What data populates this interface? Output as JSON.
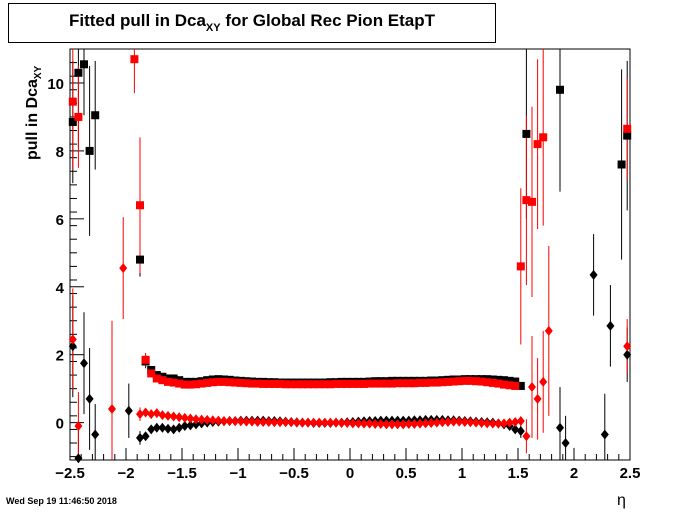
{
  "title": {
    "main": "Fitted pull in Dca",
    "sub": "XY",
    "rest": " for Global Rec Pion EtapT"
  },
  "ylabel": {
    "main": "pull in Dca",
    "sub": "XY"
  },
  "xlabel": "η",
  "timestamp": "Wed Sep 19 11:46:50 2018",
  "chart_data": {
    "type": "scatter",
    "xlim": [
      -2.5,
      2.5
    ],
    "ylim": [
      -1.1,
      11.0
    ],
    "xticks": [
      -2.5,
      -2,
      -1.5,
      -1,
      -0.5,
      0,
      0.5,
      1,
      1.5,
      2,
      2.5
    ],
    "xtick_labels": [
      "−2.5",
      "−2",
      "−1.5",
      "−1",
      "−0.5",
      "0",
      "0.5",
      "1",
      "1.5",
      "2",
      "2.5"
    ],
    "yticks": [
      0,
      2,
      4,
      6,
      8,
      10
    ],
    "ytick_labels": [
      "0",
      "2",
      "4",
      "6",
      "8",
      "10"
    ],
    "colors": {
      "black": "#000000",
      "red": "#ff0000"
    },
    "series": [
      {
        "marker": "square",
        "color": "#000000",
        "x": [
          -2.475,
          -2.425,
          -2.375,
          -2.325,
          -2.275,
          -1.875,
          -1.825,
          -1.775,
          -1.725,
          -1.675,
          -1.625,
          -1.575,
          -1.525,
          -1.475,
          -1.425,
          -1.375,
          -1.325,
          -1.275,
          -1.225,
          -1.175,
          -1.125,
          -1.075,
          -1.025,
          -0.975,
          -0.925,
          -0.875,
          -0.825,
          -0.775,
          -0.725,
          -0.675,
          -0.625,
          -0.575,
          -0.525,
          -0.475,
          -0.425,
          -0.375,
          -0.325,
          -0.275,
          -0.225,
          -0.175,
          -0.125,
          -0.075,
          -0.025,
          0.025,
          0.075,
          0.125,
          0.175,
          0.225,
          0.275,
          0.325,
          0.375,
          0.425,
          0.475,
          0.525,
          0.575,
          0.625,
          0.675,
          0.725,
          0.775,
          0.825,
          0.875,
          0.925,
          0.975,
          1.025,
          1.075,
          1.125,
          1.175,
          1.225,
          1.275,
          1.325,
          1.375,
          1.425,
          1.475,
          1.525,
          1.575,
          1.875,
          2.425,
          2.475
        ],
        "y": [
          8.85,
          10.3,
          10.55,
          8.0,
          9.05,
          4.8,
          1.8,
          1.55,
          1.4,
          1.35,
          1.3,
          1.3,
          1.25,
          1.2,
          1.2,
          1.2,
          1.22,
          1.25,
          1.27,
          1.28,
          1.27,
          1.26,
          1.24,
          1.23,
          1.22,
          1.21,
          1.2,
          1.2,
          1.19,
          1.19,
          1.18,
          1.18,
          1.18,
          1.18,
          1.18,
          1.18,
          1.18,
          1.18,
          1.18,
          1.19,
          1.19,
          1.2,
          1.2,
          1.2,
          1.2,
          1.2,
          1.21,
          1.22,
          1.22,
          1.22,
          1.23,
          1.23,
          1.23,
          1.23,
          1.23,
          1.23,
          1.23,
          1.24,
          1.24,
          1.25,
          1.26,
          1.27,
          1.27,
          1.28,
          1.28,
          1.28,
          1.28,
          1.28,
          1.27,
          1.26,
          1.25,
          1.23,
          1.21,
          1.08,
          8.5,
          9.8,
          7.6,
          8.45
        ],
        "err": [
          1.8,
          2.2,
          1.5,
          2.5,
          1.6,
          0.5,
          0.2,
          0.12,
          0.08,
          0.05,
          0.04,
          0.03,
          0.03,
          0.03,
          0.03,
          0.03,
          0.03,
          0.03,
          0.03,
          0.03,
          0.03,
          0.03,
          0.03,
          0.03,
          0.03,
          0.03,
          0.03,
          0.03,
          0.03,
          0.03,
          0.03,
          0.03,
          0.03,
          0.03,
          0.03,
          0.03,
          0.03,
          0.03,
          0.03,
          0.03,
          0.03,
          0.03,
          0.03,
          0.03,
          0.03,
          0.03,
          0.03,
          0.03,
          0.03,
          0.03,
          0.03,
          0.03,
          0.03,
          0.03,
          0.03,
          0.03,
          0.03,
          0.03,
          0.03,
          0.03,
          0.03,
          0.03,
          0.03,
          0.03,
          0.03,
          0.03,
          0.03,
          0.03,
          0.03,
          0.03,
          0.03,
          0.03,
          0.05,
          0.12,
          2.5,
          3.0,
          2.8,
          2.2
        ]
      },
      {
        "marker": "square",
        "color": "#ff0000",
        "x": [
          -2.475,
          -2.425,
          -1.925,
          -1.875,
          -1.825,
          -1.775,
          -1.725,
          -1.675,
          -1.625,
          -1.575,
          -1.525,
          -1.475,
          -1.425,
          -1.375,
          -1.325,
          -1.275,
          -1.225,
          -1.175,
          -1.125,
          -1.075,
          -1.025,
          -0.975,
          -0.925,
          -0.875,
          -0.825,
          -0.775,
          -0.725,
          -0.675,
          -0.625,
          -0.575,
          -0.525,
          -0.475,
          -0.425,
          -0.375,
          -0.325,
          -0.275,
          -0.225,
          -0.175,
          -0.125,
          -0.075,
          -0.025,
          0.025,
          0.075,
          0.125,
          0.175,
          0.225,
          0.275,
          0.325,
          0.375,
          0.425,
          0.475,
          0.525,
          0.575,
          0.625,
          0.675,
          0.725,
          0.775,
          0.825,
          0.875,
          0.925,
          0.975,
          1.025,
          1.075,
          1.125,
          1.175,
          1.225,
          1.275,
          1.325,
          1.375,
          1.425,
          1.475,
          1.525,
          1.575,
          1.625,
          1.675,
          1.725,
          2.475
        ],
        "y": [
          9.45,
          9.0,
          10.7,
          6.4,
          1.85,
          1.45,
          1.3,
          1.25,
          1.2,
          1.18,
          1.15,
          1.12,
          1.12,
          1.13,
          1.15,
          1.17,
          1.19,
          1.2,
          1.2,
          1.19,
          1.18,
          1.17,
          1.16,
          1.15,
          1.15,
          1.14,
          1.14,
          1.14,
          1.14,
          1.13,
          1.13,
          1.13,
          1.13,
          1.13,
          1.13,
          1.13,
          1.13,
          1.13,
          1.14,
          1.14,
          1.14,
          1.14,
          1.14,
          1.14,
          1.15,
          1.15,
          1.15,
          1.15,
          1.15,
          1.16,
          1.16,
          1.16,
          1.16,
          1.17,
          1.17,
          1.18,
          1.18,
          1.19,
          1.2,
          1.21,
          1.22,
          1.23,
          1.23,
          1.22,
          1.21,
          1.19,
          1.17,
          1.15,
          1.12,
          1.1,
          1.08,
          4.6,
          6.55,
          6.5,
          8.2,
          8.4,
          8.65
        ],
        "err": [
          2.0,
          1.5,
          1.0,
          2.0,
          0.2,
          0.12,
          0.08,
          0.05,
          0.04,
          0.03,
          0.03,
          0.03,
          0.03,
          0.03,
          0.03,
          0.03,
          0.03,
          0.03,
          0.03,
          0.03,
          0.03,
          0.03,
          0.03,
          0.03,
          0.03,
          0.03,
          0.03,
          0.03,
          0.03,
          0.03,
          0.03,
          0.03,
          0.03,
          0.03,
          0.03,
          0.03,
          0.03,
          0.03,
          0.03,
          0.03,
          0.03,
          0.03,
          0.03,
          0.03,
          0.03,
          0.03,
          0.03,
          0.03,
          0.03,
          0.03,
          0.03,
          0.03,
          0.03,
          0.03,
          0.03,
          0.03,
          0.03,
          0.03,
          0.03,
          0.03,
          0.03,
          0.03,
          0.03,
          0.03,
          0.03,
          0.03,
          0.03,
          0.03,
          0.03,
          0.03,
          0.05,
          2.3,
          2.5,
          2.8,
          2.5,
          2.6,
          1.5
        ]
      },
      {
        "marker": "diamond",
        "color": "#000000",
        "x": [
          -2.475,
          -2.425,
          -2.375,
          -2.325,
          -2.275,
          -1.975,
          -1.875,
          -1.825,
          -1.775,
          -1.725,
          -1.675,
          -1.625,
          -1.575,
          -1.525,
          -1.475,
          -1.425,
          -1.375,
          -1.325,
          -1.275,
          -1.225,
          -1.175,
          -1.125,
          -1.075,
          -1.025,
          -0.975,
          -0.925,
          -0.875,
          -0.825,
          -0.775,
          -0.725,
          -0.675,
          -0.625,
          -0.575,
          -0.525,
          -0.475,
          -0.425,
          -0.375,
          -0.325,
          -0.275,
          -0.225,
          -0.175,
          -0.125,
          -0.075,
          -0.025,
          0.025,
          0.075,
          0.125,
          0.175,
          0.225,
          0.275,
          0.325,
          0.375,
          0.425,
          0.475,
          0.525,
          0.575,
          0.625,
          0.675,
          0.725,
          0.775,
          0.825,
          0.875,
          0.925,
          0.975,
          1.025,
          1.075,
          1.125,
          1.175,
          1.225,
          1.275,
          1.325,
          1.375,
          1.425,
          1.475,
          1.525,
          1.875,
          1.925,
          2.175,
          2.275,
          2.325,
          2.475
        ],
        "y": [
          2.25,
          -1.05,
          1.75,
          0.7,
          -0.35,
          0.35,
          -0.45,
          -0.4,
          -0.2,
          -0.15,
          -0.15,
          -0.18,
          -0.2,
          -0.15,
          -0.1,
          -0.08,
          -0.05,
          -0.02,
          0.0,
          0.02,
          0.03,
          0.04,
          0.05,
          0.05,
          0.06,
          0.06,
          0.06,
          0.06,
          0.06,
          0.05,
          0.05,
          0.04,
          0.03,
          0.02,
          0.01,
          0.0,
          0.0,
          -0.01,
          -0.01,
          -0.01,
          -0.01,
          0.0,
          0.0,
          0.01,
          0.02,
          0.03,
          0.04,
          0.05,
          0.05,
          0.06,
          0.06,
          0.06,
          0.06,
          0.06,
          0.06,
          0.07,
          0.07,
          0.08,
          0.08,
          0.08,
          0.08,
          0.07,
          0.07,
          0.06,
          0.05,
          0.04,
          0.03,
          0.02,
          0.01,
          0.0,
          -0.02,
          -0.05,
          -0.1,
          -0.2,
          -0.25,
          -0.15,
          -0.6,
          4.35,
          -0.35,
          2.85,
          2.0
        ],
        "err": [
          1.5,
          1.0,
          1.5,
          1.5,
          0.9,
          0.8,
          0.2,
          0.1,
          0.06,
          0.05,
          0.04,
          0.03,
          0.03,
          0.03,
          0.03,
          0.03,
          0.03,
          0.03,
          0.03,
          0.03,
          0.03,
          0.03,
          0.03,
          0.03,
          0.03,
          0.03,
          0.03,
          0.03,
          0.03,
          0.03,
          0.03,
          0.03,
          0.03,
          0.03,
          0.03,
          0.03,
          0.03,
          0.03,
          0.03,
          0.03,
          0.03,
          0.03,
          0.03,
          0.03,
          0.03,
          0.03,
          0.03,
          0.03,
          0.03,
          0.03,
          0.03,
          0.03,
          0.03,
          0.03,
          0.03,
          0.03,
          0.03,
          0.03,
          0.03,
          0.03,
          0.03,
          0.03,
          0.03,
          0.03,
          0.03,
          0.03,
          0.03,
          0.03,
          0.03,
          0.03,
          0.03,
          0.03,
          0.05,
          0.1,
          0.2,
          1.2,
          0.8,
          1.2,
          1.2,
          1.2,
          0.8
        ]
      },
      {
        "marker": "diamond",
        "color": "#ff0000",
        "x": [
          -2.475,
          -2.425,
          -2.125,
          -2.025,
          -1.875,
          -1.825,
          -1.775,
          -1.725,
          -1.675,
          -1.625,
          -1.575,
          -1.525,
          -1.475,
          -1.425,
          -1.375,
          -1.325,
          -1.275,
          -1.225,
          -1.175,
          -1.125,
          -1.075,
          -1.025,
          -0.975,
          -0.925,
          -0.875,
          -0.825,
          -0.775,
          -0.725,
          -0.675,
          -0.625,
          -0.575,
          -0.525,
          -0.475,
          -0.425,
          -0.375,
          -0.325,
          -0.275,
          -0.225,
          -0.175,
          -0.125,
          -0.075,
          -0.025,
          0.025,
          0.075,
          0.125,
          0.175,
          0.225,
          0.275,
          0.325,
          0.375,
          0.425,
          0.475,
          0.525,
          0.575,
          0.625,
          0.675,
          0.725,
          0.775,
          0.825,
          0.875,
          0.925,
          0.975,
          1.025,
          1.075,
          1.125,
          1.175,
          1.225,
          1.275,
          1.325,
          1.375,
          1.425,
          1.475,
          1.525,
          1.575,
          1.625,
          1.675,
          1.725,
          1.775,
          2.475
        ],
        "y": [
          2.45,
          -0.1,
          0.4,
          4.55,
          0.25,
          0.3,
          0.25,
          0.28,
          0.22,
          0.2,
          0.18,
          0.16,
          0.14,
          0.12,
          0.1,
          0.09,
          0.08,
          0.07,
          0.06,
          0.05,
          0.05,
          0.04,
          0.04,
          0.03,
          0.03,
          0.02,
          0.02,
          0.02,
          0.01,
          0.01,
          0.01,
          0.01,
          0.0,
          0.0,
          0.0,
          0.0,
          0.0,
          0.0,
          0.0,
          0.0,
          -0.01,
          -0.01,
          -0.02,
          -0.02,
          -0.03,
          -0.03,
          -0.04,
          -0.04,
          -0.05,
          -0.05,
          -0.05,
          -0.05,
          -0.04,
          -0.04,
          -0.03,
          -0.02,
          -0.01,
          0.0,
          0.01,
          0.02,
          0.03,
          0.03,
          0.02,
          0.01,
          0.0,
          -0.01,
          -0.02,
          -0.03,
          -0.03,
          -0.02,
          0.0,
          0.02,
          0.05,
          -0.4,
          1.05,
          0.7,
          1.2,
          2.7,
          2.25
        ],
        "err": [
          1.5,
          1.0,
          2.6,
          1.5,
          0.2,
          0.1,
          0.06,
          0.05,
          0.04,
          0.03,
          0.03,
          0.03,
          0.03,
          0.03,
          0.03,
          0.03,
          0.03,
          0.03,
          0.03,
          0.03,
          0.03,
          0.03,
          0.03,
          0.03,
          0.03,
          0.03,
          0.03,
          0.03,
          0.03,
          0.03,
          0.03,
          0.03,
          0.03,
          0.03,
          0.03,
          0.03,
          0.03,
          0.03,
          0.03,
          0.03,
          0.03,
          0.03,
          0.03,
          0.03,
          0.03,
          0.03,
          0.03,
          0.03,
          0.03,
          0.03,
          0.03,
          0.03,
          0.03,
          0.03,
          0.03,
          0.03,
          0.03,
          0.03,
          0.03,
          0.03,
          0.03,
          0.03,
          0.03,
          0.03,
          0.03,
          0.03,
          0.03,
          0.03,
          0.03,
          0.03,
          0.03,
          0.05,
          0.1,
          0.5,
          1.5,
          1.2,
          1.5,
          2.5,
          0.8
        ]
      }
    ]
  }
}
